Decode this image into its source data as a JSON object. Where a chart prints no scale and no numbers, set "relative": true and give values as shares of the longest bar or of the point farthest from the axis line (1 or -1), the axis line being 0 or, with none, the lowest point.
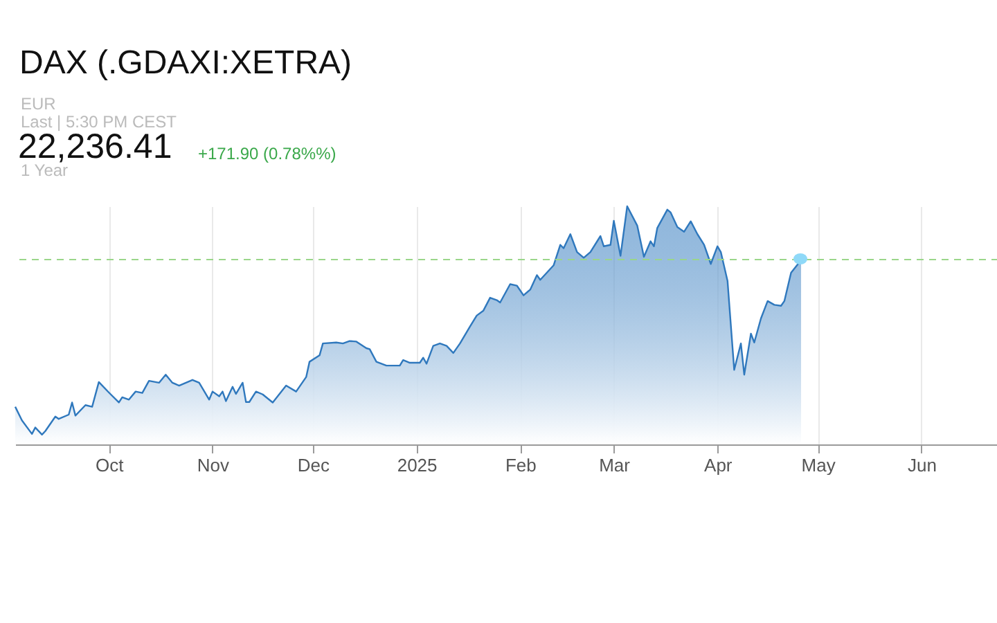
{
  "chart_data": {
    "type": "area",
    "title": "DAX (.GDAXI:XETRA)",
    "subtitle": "EUR",
    "annotations": [
      "Last | 5:30 PM CEST",
      "22,236.41",
      "+171.90 (0.78%%)",
      "1 Year"
    ],
    "relative": true,
    "grid": "x",
    "xlim": [
      "2024-09-03",
      "2025-06-24"
    ],
    "xticks": [
      {
        "value": "2024-10-01",
        "label": "Oct"
      },
      {
        "value": "2024-11-01",
        "label": "Nov"
      },
      {
        "value": "2024-12-01",
        "label": "Dec"
      },
      {
        "value": "2025-01-01",
        "label": "2025"
      },
      {
        "value": "2025-02-01",
        "label": "Feb"
      },
      {
        "value": "2025-03-01",
        "label": "Mar"
      },
      {
        "value": "2025-04-01",
        "label": "Apr"
      },
      {
        "value": "2025-05-01",
        "label": "May"
      },
      {
        "value": "2025-06-01",
        "label": "Jun"
      }
    ],
    "x": [
      "2024-09-03",
      "2024-09-05",
      "2024-09-08",
      "2024-09-09",
      "2024-09-11",
      "2024-09-12",
      "2024-09-15",
      "2024-09-16",
      "2024-09-19",
      "2024-09-20",
      "2024-09-21",
      "2024-09-24",
      "2024-09-26",
      "2024-09-28",
      "2024-10-01",
      "2024-10-04",
      "2024-10-05",
      "2024-10-07",
      "2024-10-09",
      "2024-10-11",
      "2024-10-13",
      "2024-10-16",
      "2024-10-18",
      "2024-10-20",
      "2024-10-22",
      "2024-10-26",
      "2024-10-28",
      "2024-10-31",
      "2024-11-01",
      "2024-11-03",
      "2024-11-04",
      "2024-11-05",
      "2024-11-07",
      "2024-11-08",
      "2024-11-10",
      "2024-11-11",
      "2024-11-12",
      "2024-11-14",
      "2024-11-16",
      "2024-11-19",
      "2024-11-23",
      "2024-11-26",
      "2024-11-29",
      "2024-11-30",
      "2024-12-03",
      "2024-12-04",
      "2024-12-08",
      "2024-12-10",
      "2024-12-12",
      "2024-12-14",
      "2024-12-17",
      "2024-12-18",
      "2024-12-20",
      "2024-12-23",
      "2024-12-27",
      "2024-12-28",
      "2024-12-30",
      "2025-01-02",
      "2025-01-03",
      "2025-01-04",
      "2025-01-06",
      "2025-01-08",
      "2025-01-10",
      "2025-01-12",
      "2025-01-14",
      "2025-01-17",
      "2025-01-19",
      "2025-01-21",
      "2025-01-23",
      "2025-01-25",
      "2025-01-26",
      "2025-01-29",
      "2025-01-31",
      "2025-02-02",
      "2025-02-04",
      "2025-02-06",
      "2025-02-07",
      "2025-02-11",
      "2025-02-13",
      "2025-02-14",
      "2025-02-16",
      "2025-02-18",
      "2025-02-20",
      "2025-02-22",
      "2025-02-25",
      "2025-02-26",
      "2025-02-28",
      "2025-03-01",
      "2025-03-03",
      "2025-03-05",
      "2025-03-08",
      "2025-03-10",
      "2025-03-12",
      "2025-03-13",
      "2025-03-14",
      "2025-03-17",
      "2025-03-18",
      "2025-03-20",
      "2025-03-22",
      "2025-03-24",
      "2025-03-26",
      "2025-03-28",
      "2025-03-30",
      "2025-04-01",
      "2025-04-02",
      "2025-04-04",
      "2025-04-06",
      "2025-04-08",
      "2025-04-09",
      "2025-04-11",
      "2025-04-12",
      "2025-04-14",
      "2025-04-16",
      "2025-04-18",
      "2025-04-20",
      "2025-04-21",
      "2025-04-23",
      "2025-04-26"
    ],
    "series": [
      {
        "color": "#2f78bd",
        "values": [
          0.158,
          0.101,
          0.044,
          0.071,
          0.041,
          0.056,
          0.117,
          0.107,
          0.125,
          0.176,
          0.121,
          0.165,
          0.158,
          0.262,
          0.218,
          0.176,
          0.198,
          0.188,
          0.222,
          0.216,
          0.267,
          0.259,
          0.293,
          0.259,
          0.247,
          0.271,
          0.259,
          0.188,
          0.222,
          0.202,
          0.222,
          0.182,
          0.242,
          0.212,
          0.259,
          0.178,
          0.178,
          0.222,
          0.21,
          0.176,
          0.247,
          0.222,
          0.283,
          0.347,
          0.374,
          0.424,
          0.428,
          0.424,
          0.434,
          0.432,
          0.404,
          0.4,
          0.347,
          0.331,
          0.331,
          0.354,
          0.343,
          0.343,
          0.364,
          0.339,
          0.414,
          0.424,
          0.414,
          0.384,
          0.424,
          0.495,
          0.541,
          0.562,
          0.616,
          0.606,
          0.596,
          0.673,
          0.667,
          0.626,
          0.65,
          0.711,
          0.691,
          0.752,
          0.838,
          0.824,
          0.883,
          0.808,
          0.784,
          0.808,
          0.875,
          0.832,
          0.838,
          0.939,
          0.792,
          1.0,
          0.919,
          0.788,
          0.853,
          0.832,
          0.909,
          0.986,
          0.974,
          0.913,
          0.893,
          0.937,
          0.883,
          0.838,
          0.758,
          0.832,
          0.808,
          0.687,
          0.313,
          0.424,
          0.293,
          0.465,
          0.428,
          0.529,
          0.602,
          0.586,
          0.582,
          0.602,
          0.721,
          0.774
        ]
      }
    ],
    "ref_lines": [
      {
        "axis": "y",
        "value": 0.776,
        "color": "#9ad68a",
        "line_style": "dashed"
      }
    ]
  }
}
